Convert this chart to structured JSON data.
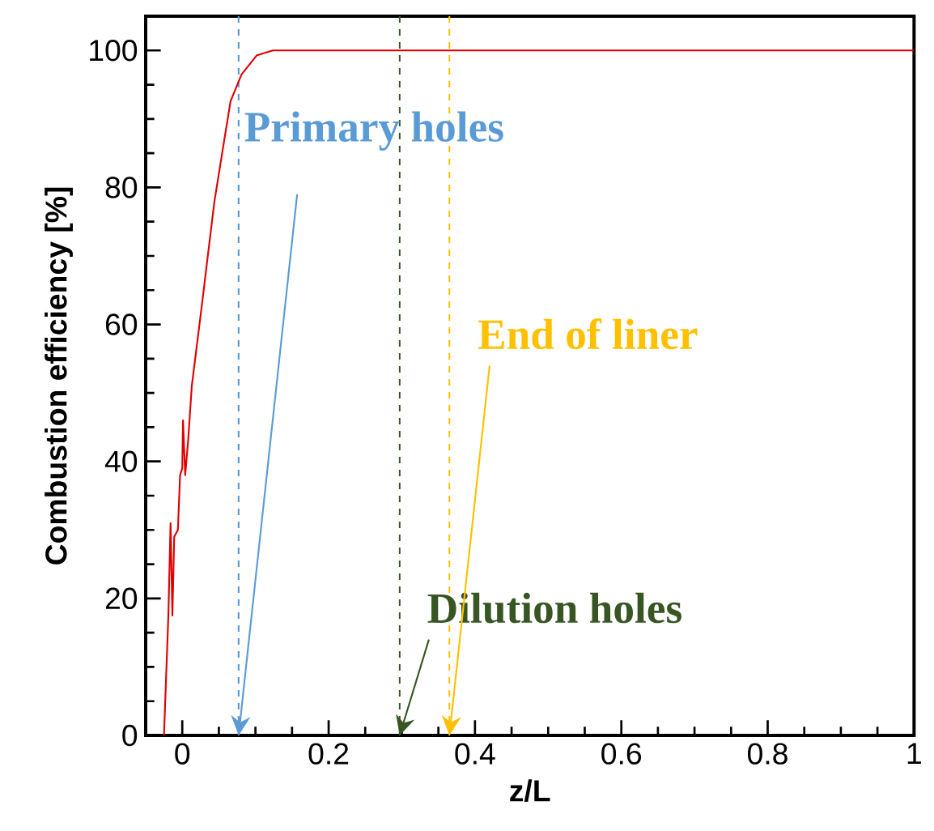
{
  "chart_data": {
    "type": "line",
    "xlabel": "z/L",
    "ylabel": "Combustion efficiency [%]",
    "x": [
      -0.025,
      -0.019,
      -0.016,
      -0.0135,
      -0.011,
      -0.006,
      -0.003,
      0.0,
      0.001,
      0.004,
      0.008,
      0.013,
      0.02,
      0.027,
      0.036,
      0.044,
      0.056,
      0.066,
      0.081,
      0.102,
      0.124,
      0.2,
      0.4,
      0.6,
      0.8,
      1.0
    ],
    "series": [
      {
        "color": "#e00000",
        "values": [
          0,
          17.5,
          31,
          17.5,
          29,
          30,
          38,
          39,
          46,
          38,
          43,
          51,
          57,
          63,
          71,
          78,
          86,
          92.6,
          96.5,
          99.3,
          100,
          100,
          100,
          100,
          100,
          100
        ]
      }
    ],
    "xlim": [
      -0.05,
      1
    ],
    "ylim": [
      0,
      105
    ],
    "xticks": [
      0,
      0.2,
      0.4,
      0.6,
      0.8,
      1
    ],
    "yticks": [
      0,
      20,
      40,
      60,
      80,
      100
    ],
    "grid": false,
    "marker": "none",
    "line_style": "solid",
    "ref_lines": [
      {
        "axis": "x",
        "value": 0.077,
        "color": "#5b9bd5",
        "line_style": "dashed"
      },
      {
        "axis": "x",
        "value": 0.297,
        "color": "#375623",
        "line_style": "dashed"
      },
      {
        "axis": "x",
        "value": 0.365,
        "color": "#ffc000",
        "line_style": "dashed"
      }
    ],
    "annotations": [
      {
        "text": "Primary holes",
        "x": 0.077,
        "y": 0
      },
      {
        "text": "Dilution holes",
        "x": 0.297,
        "y": 0
      },
      {
        "text": "End of liner",
        "x": 0.365,
        "y": 0
      }
    ]
  }
}
